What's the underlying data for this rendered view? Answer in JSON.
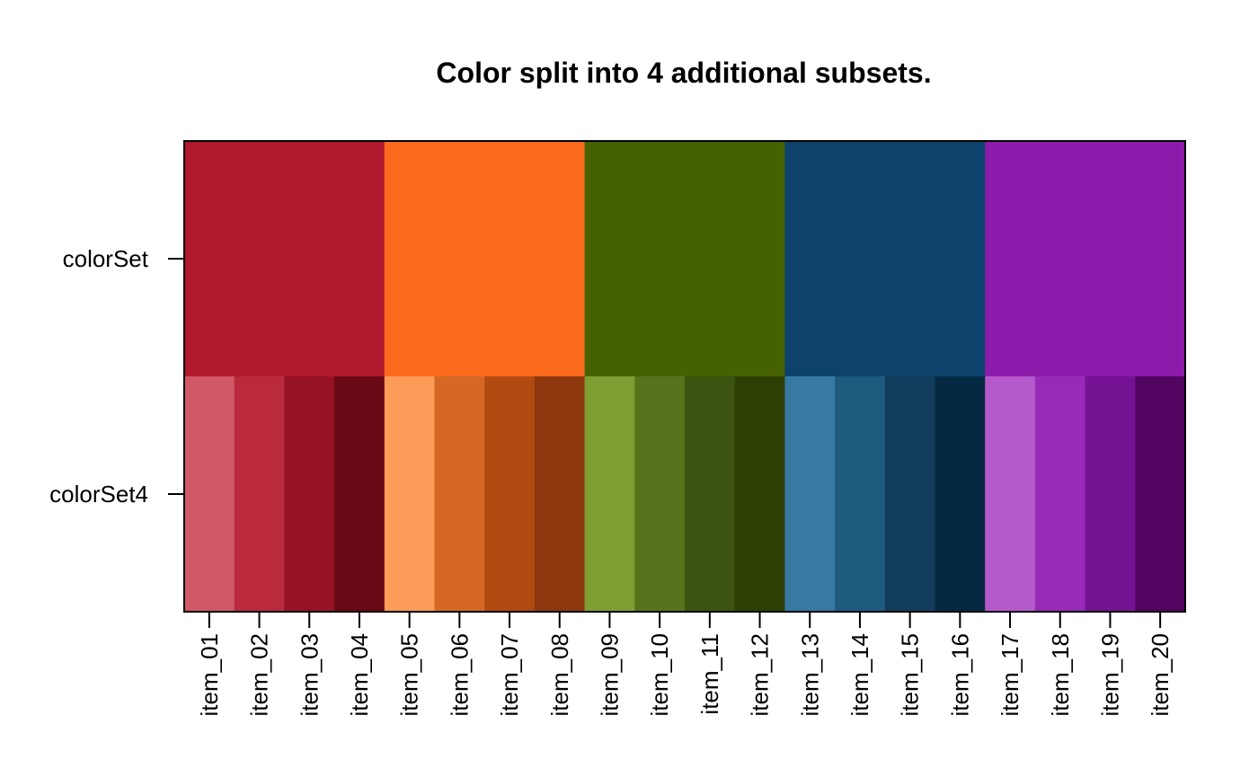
{
  "chart_data": {
    "type": "heatmap",
    "title": "Color split into 4 additional subsets.",
    "xlabel": "",
    "ylabel": "",
    "grid": false,
    "legend": "none",
    "rows": [
      "colorSet",
      "colorSet4"
    ],
    "columns": [
      "item_01",
      "item_02",
      "item_03",
      "item_04",
      "item_05",
      "item_06",
      "item_07",
      "item_08",
      "item_09",
      "item_10",
      "item_11",
      "item_12",
      "item_13",
      "item_14",
      "item_15",
      "item_16",
      "item_17",
      "item_18",
      "item_19",
      "item_20"
    ],
    "groups": [
      {
        "row": "colorSet",
        "span": 4,
        "color": "#B11A2D"
      },
      {
        "row": "colorSet",
        "span": 4,
        "color": "#FB6A1C"
      },
      {
        "row": "colorSet",
        "span": 4,
        "color": "#466102"
      },
      {
        "row": "colorSet",
        "span": 4,
        "color": "#0C426B"
      },
      {
        "row": "colorSet",
        "span": 4,
        "color": "#8C1BAB"
      }
    ],
    "cells": [
      "#D15866",
      "#BA2A3C",
      "#971224",
      "#6A0816",
      "#FD9B58",
      "#D66826",
      "#B14B12",
      "#8E370E",
      "#7F9E31",
      "#58731C",
      "#3D5310",
      "#2D3F04",
      "#367AA4",
      "#1E597E",
      "#123C5B",
      "#052943",
      "#B55ACA",
      "#972AB6",
      "#741293",
      "#520560"
    ]
  }
}
